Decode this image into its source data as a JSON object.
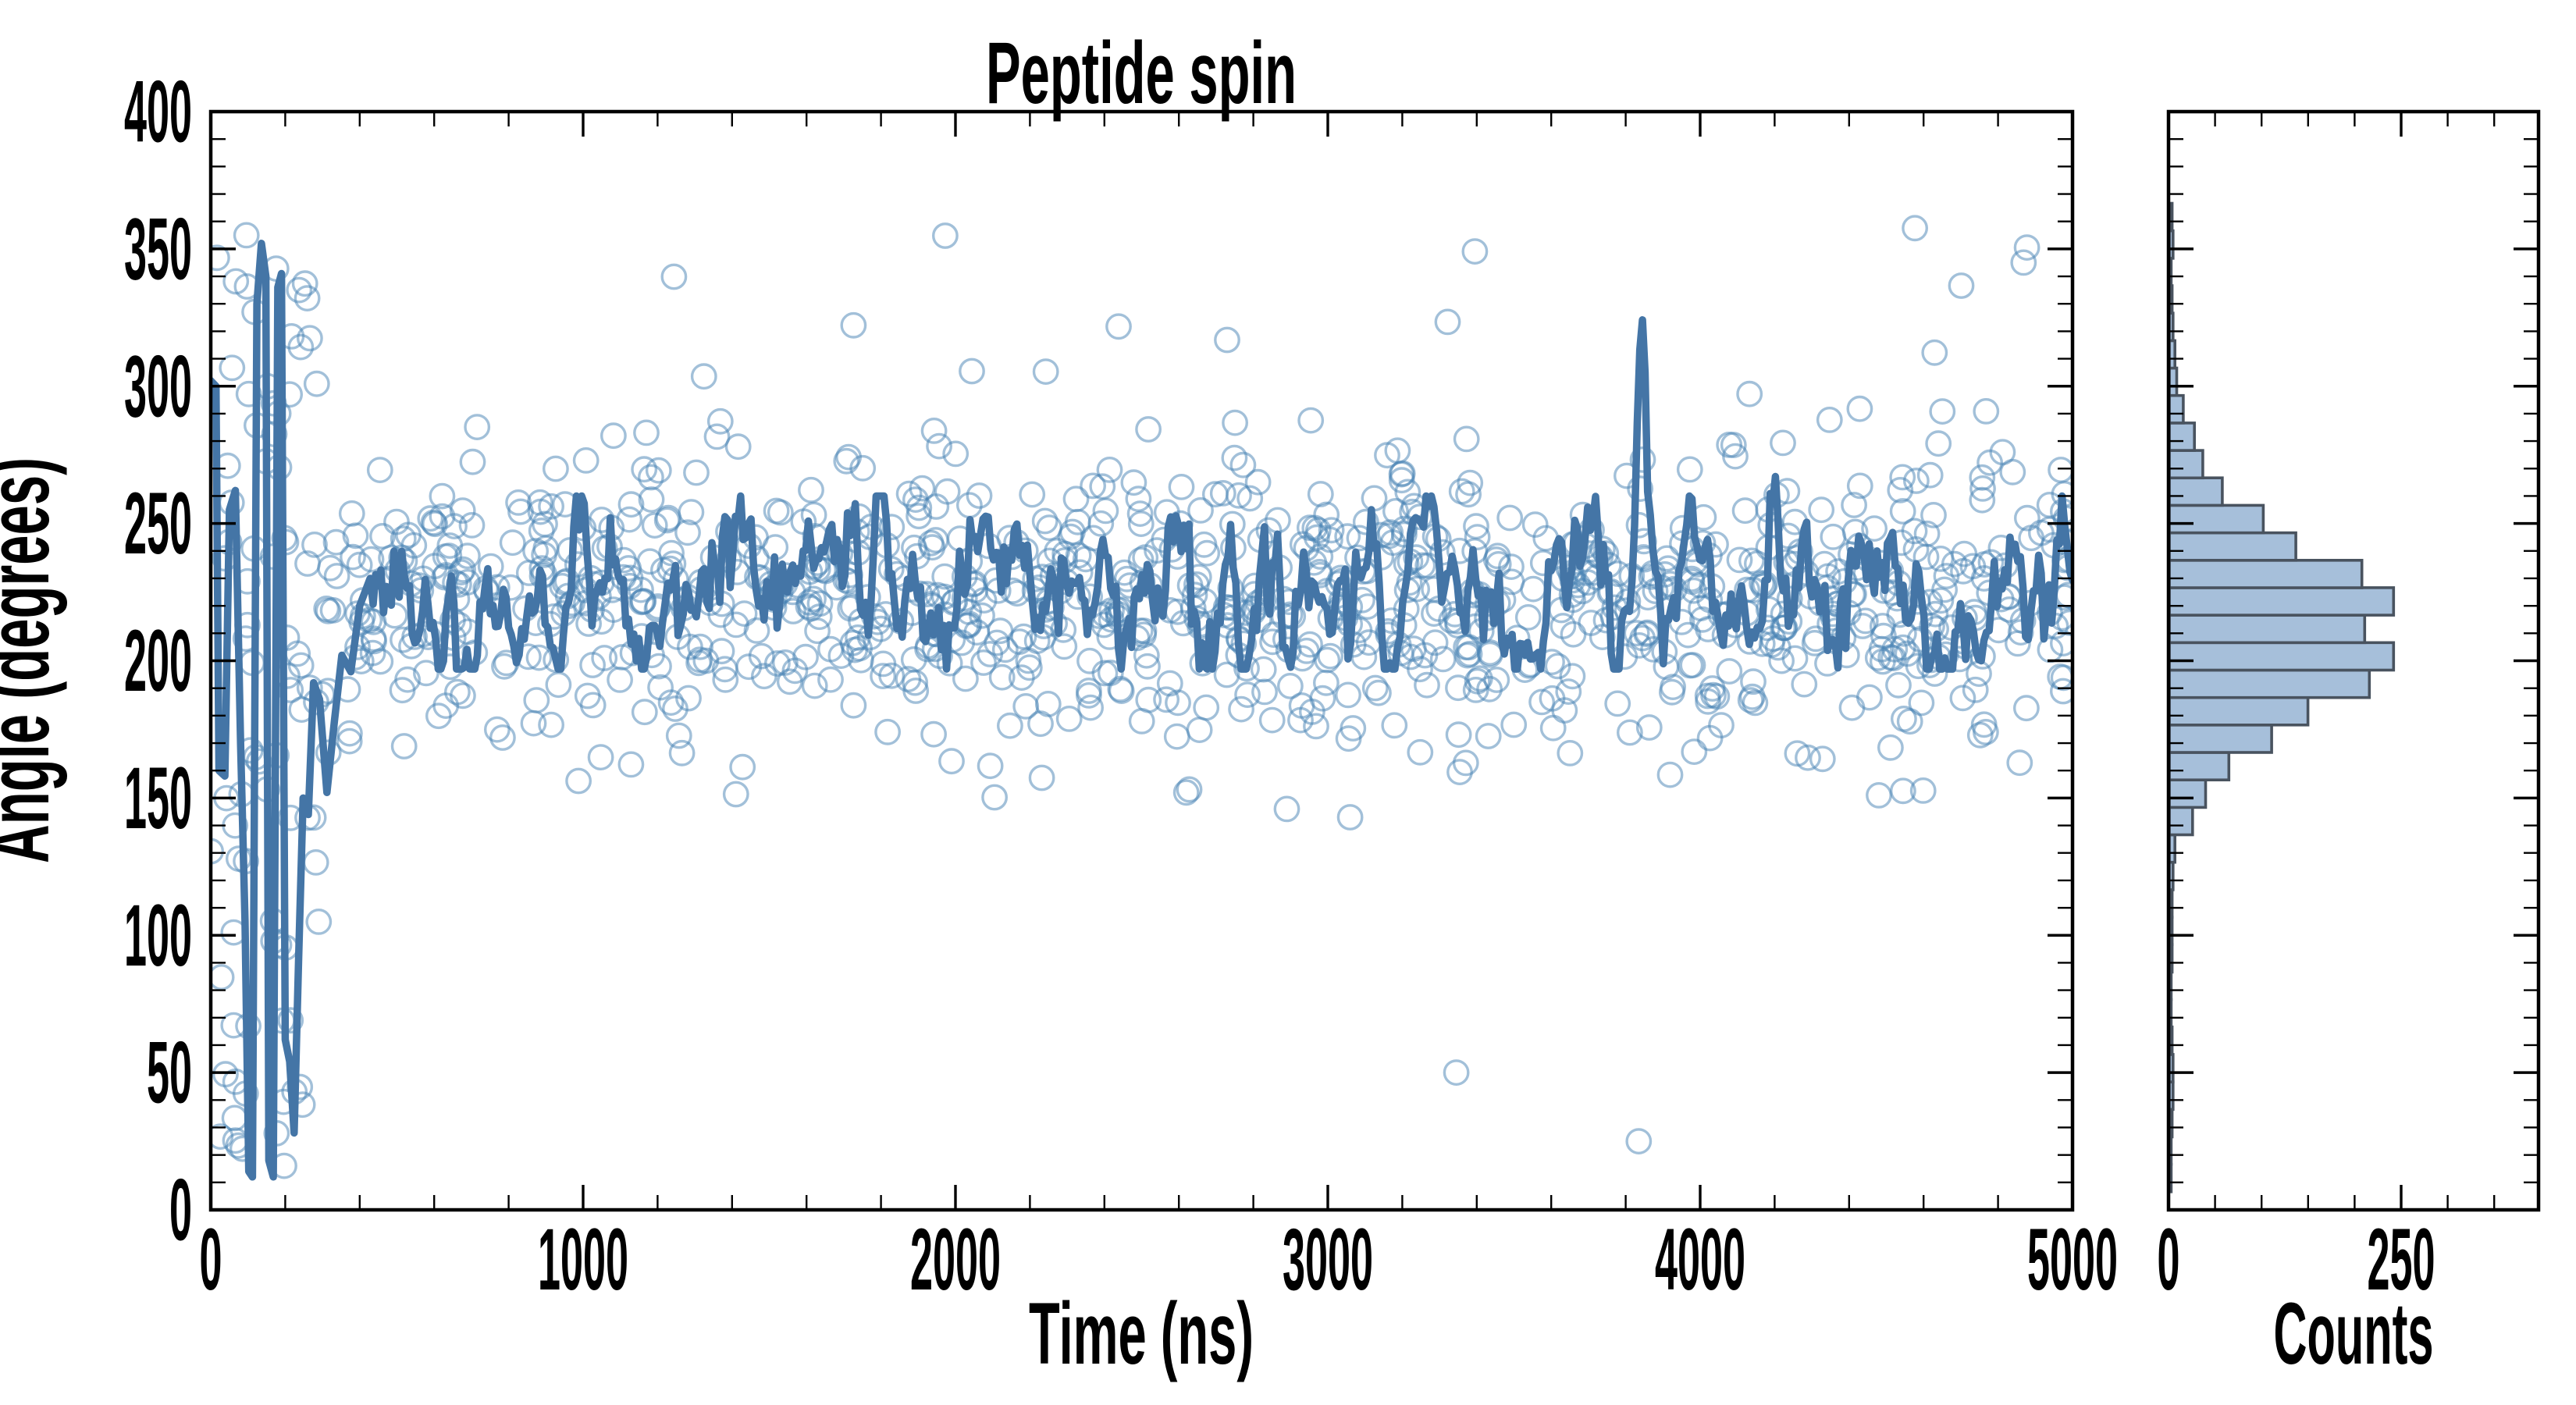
{
  "figure": {
    "background": "#ffffff",
    "colors": {
      "line": "#4475a6",
      "scatter_edge": "#4682b4",
      "scatter_edge_opacity": 0.5,
      "hist_fill": "#a6bfda",
      "hist_edge": "#49535f",
      "axis": "#000000"
    }
  },
  "chart_data": {
    "type": "scatter",
    "title": "Peptide spin",
    "panels": [
      {
        "name": "main",
        "xlabel": "Time (ns)",
        "ylabel": "Angle (degrees)",
        "xlim": [
          0,
          5000
        ],
        "ylim": [
          0,
          400
        ],
        "x_major_ticks": [
          0,
          1000,
          2000,
          3000,
          4000,
          5000
        ],
        "x_minor_step": 200,
        "y_major_ticks": [
          0,
          50,
          100,
          150,
          200,
          250,
          300,
          350,
          400
        ],
        "y_minor_step": 10,
        "grid": false,
        "scatter_style": "open-circles",
        "scatter_gen": {
          "seed": 123456789,
          "n_band": 1060,
          "band_t_range": [
            290,
            5000
          ],
          "band_mean": 223,
          "band_sd": 26,
          "band_clip": [
            150,
            334
          ],
          "high_outlier_prob": 0.021,
          "high_outlier_range": [
            286,
            358
          ],
          "n_transient": 85,
          "transient_t_range": [
            0,
            290
          ],
          "transient_angle_range": [
            6,
            356
          ]
        },
        "low_outliers": [
          [
            2620,
            152
          ],
          [
            2890,
            146
          ],
          [
            3060,
            143
          ],
          [
            3345,
            50
          ],
          [
            3835,
            25
          ],
          [
            4480,
            151
          ]
        ],
        "line_mean": 224,
        "line_wiggle_sd": 10.5,
        "line_keypoints": [
          [
            0,
            302
          ],
          [
            14,
            300
          ],
          [
            22,
            160
          ],
          [
            38,
            158
          ],
          [
            50,
            255
          ],
          [
            66,
            262
          ],
          [
            80,
            170
          ],
          [
            92,
            105
          ],
          [
            102,
            14
          ],
          [
            112,
            12
          ],
          [
            124,
            330
          ],
          [
            136,
            352
          ],
          [
            148,
            340
          ],
          [
            156,
            18
          ],
          [
            168,
            12
          ],
          [
            180,
            336
          ],
          [
            190,
            341
          ],
          [
            200,
            62
          ],
          [
            212,
            54
          ],
          [
            224,
            28
          ],
          [
            236,
            92
          ],
          [
            248,
            150
          ],
          [
            262,
            144
          ],
          [
            276,
            192
          ],
          [
            292,
            186
          ],
          [
            312,
            152
          ],
          [
            332,
            178
          ],
          [
            352,
            202
          ],
          [
            376,
            196
          ],
          [
            400,
            220
          ],
          [
            428,
            230
          ]
        ],
        "line_spikes": [
          {
            "t": 3843,
            "height": 70,
            "width": 10
          },
          {
            "t": 4193,
            "height": 40,
            "width": 11
          }
        ],
        "line_end": [
          5000,
          232
        ]
      },
      {
        "name": "hist",
        "xlabel": "Counts",
        "xlim": [
          0,
          398
        ],
        "x_major_ticks": [
          0,
          250
        ],
        "x_minor_step": 50,
        "ylim": [
          0,
          400
        ],
        "y_minor_step": 10,
        "orientation": "horizontal",
        "bin_width": 10,
        "bins": [
          [
            6.6,
            2
          ],
          [
            16.6,
            2
          ],
          [
            26.6,
            3
          ],
          [
            36.6,
            4
          ],
          [
            46.6,
            4
          ],
          [
            56.6,
            3
          ],
          [
            66.6,
            2
          ],
          [
            76.6,
            2
          ],
          [
            86.6,
            3
          ],
          [
            96.6,
            3
          ],
          [
            106.6,
            3
          ],
          [
            116.6,
            4
          ],
          [
            126.6,
            6
          ],
          [
            136.6,
            25
          ],
          [
            146.6,
            39
          ],
          [
            156.6,
            64
          ],
          [
            166.6,
            110
          ],
          [
            176.6,
            149
          ],
          [
            186.6,
            215
          ],
          [
            196.6,
            241
          ],
          [
            206.6,
            210
          ],
          [
            216.6,
            241
          ],
          [
            226.6,
            207
          ],
          [
            236.6,
            136
          ],
          [
            246.6,
            101
          ],
          [
            256.6,
            57
          ],
          [
            266.6,
            36
          ],
          [
            276.6,
            27
          ],
          [
            286.6,
            15
          ],
          [
            296.6,
            8
          ],
          [
            306.6,
            6
          ],
          [
            316.6,
            4
          ],
          [
            326.6,
            3
          ],
          [
            336.6,
            2
          ],
          [
            346.6,
            4
          ],
          [
            356.6,
            3
          ]
        ]
      }
    ]
  }
}
